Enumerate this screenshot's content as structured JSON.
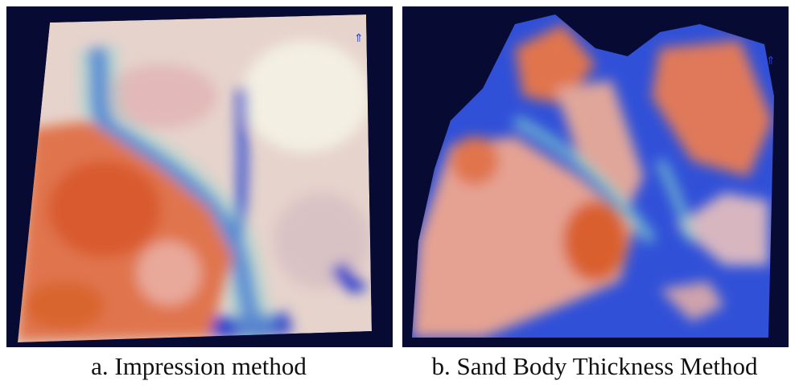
{
  "panels": [
    {
      "caption": "a. Impression method"
    },
    {
      "caption": "b. Sand Body Thickness Method"
    }
  ]
}
